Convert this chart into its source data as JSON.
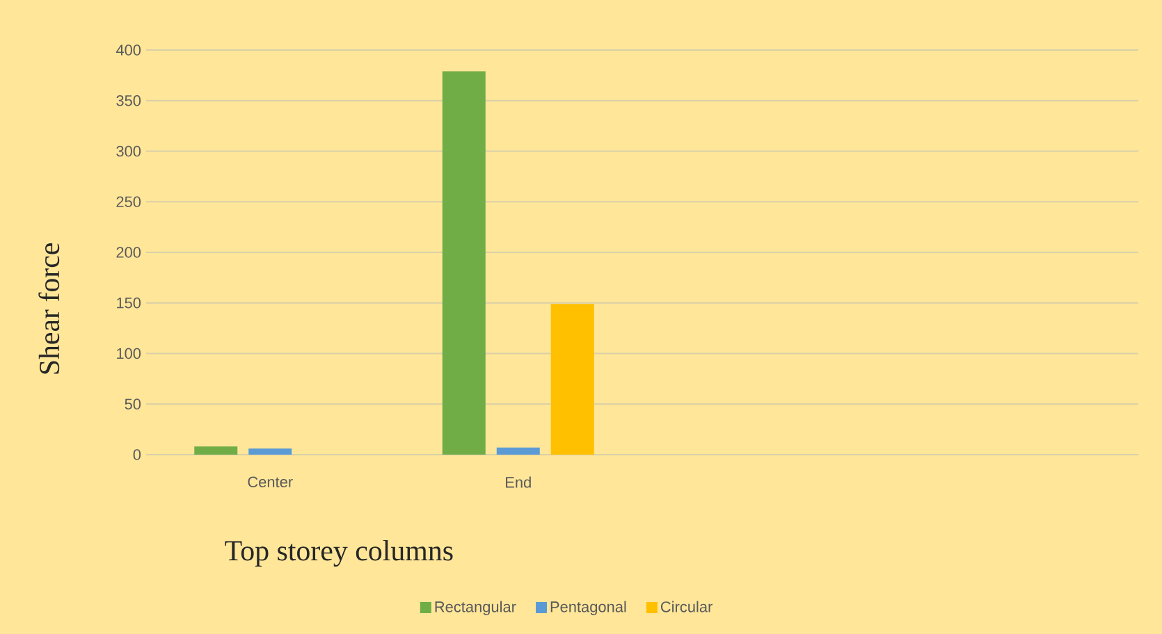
{
  "chart_data": {
    "type": "bar",
    "xlabel": "Top storey columns",
    "ylabel": "Shear force",
    "categories": [
      "Center",
      "End",
      null,
      null
    ],
    "series": [
      {
        "name": "Rectangular",
        "color": "#70ad47",
        "values": [
          8,
          379,
          null,
          null
        ]
      },
      {
        "name": "Pentagonal",
        "color": "#5b9bd5",
        "values": [
          6,
          7,
          null,
          null
        ]
      },
      {
        "name": "Circular",
        "color": "#ffc000",
        "values": [
          0,
          149,
          null,
          null
        ]
      }
    ],
    "ylim": [
      0,
      400
    ],
    "yticks": [
      0,
      50,
      100,
      150,
      200,
      250,
      300,
      350,
      400
    ],
    "grid": "y",
    "legend": "bottom"
  }
}
